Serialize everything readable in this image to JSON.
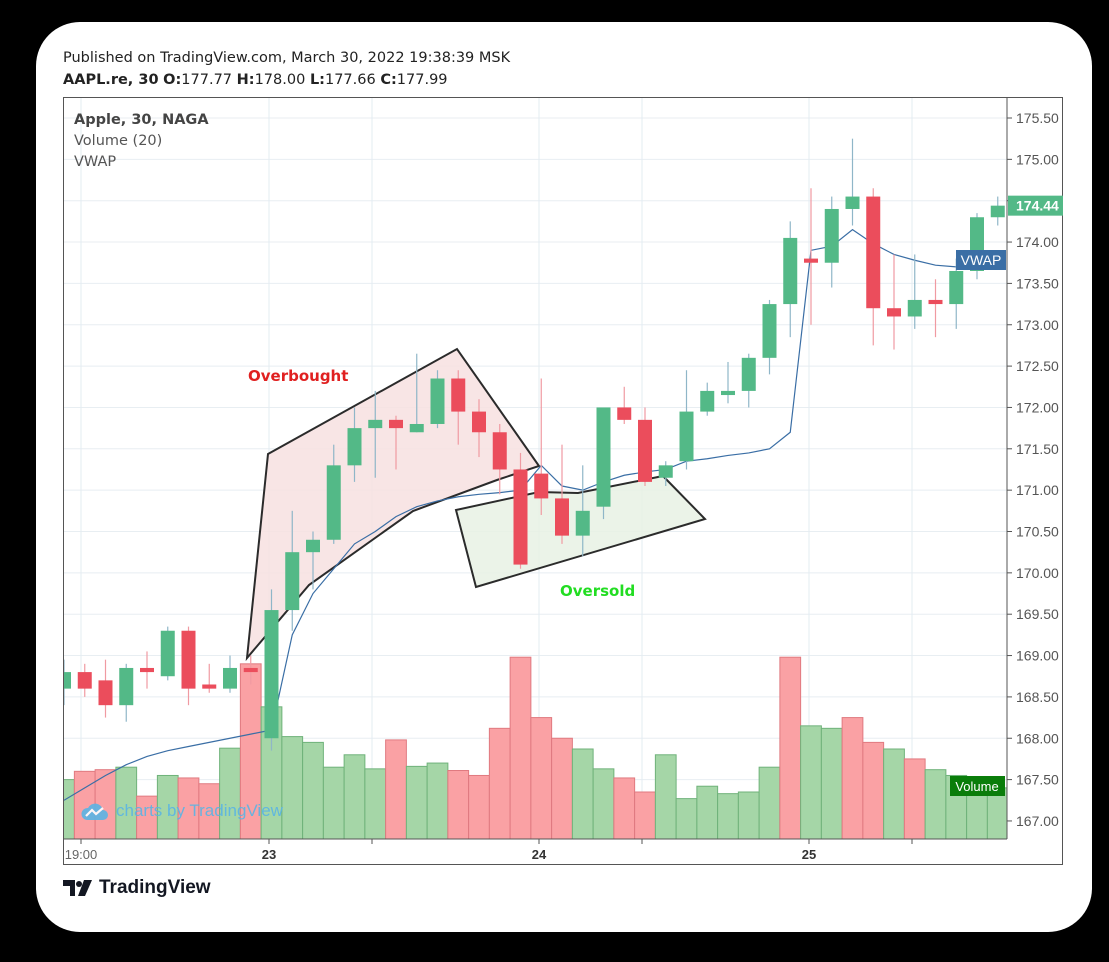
{
  "header": {
    "published": "Published on TradingView.com, March 30, 2022 19:38:39 MSK",
    "symbol_interval": "AAPL.re, 30",
    "o_label": "O:",
    "o_value": "177.77",
    "h_label": "H:",
    "h_value": "178.00",
    "l_label": "L:",
    "l_value": "177.66",
    "c_label": "C:",
    "c_value": "177.99"
  },
  "legend": {
    "main": "Apple, 30, NAGA",
    "volume": "Volume (20)",
    "vwap": "VWAP"
  },
  "watermark": "charts by TradingView",
  "footer_logo": "TradingView",
  "badges": {
    "last_price": "174.44",
    "vwap": "VWAP",
    "volume": "Volume"
  },
  "annotations": {
    "overbought": "Overbought",
    "oversold": "Oversold"
  },
  "colors": {
    "up": "#53b987",
    "down": "#eb4d5c",
    "vol_up": "#a5d6a7",
    "vol_down": "#faa1a4",
    "vwap": "#3a6ea5",
    "overbought_fill": "#f7e1e1",
    "oversold_fill": "#e8f1e4",
    "overbought_text": "#e02020",
    "oversold_text": "#22dd22",
    "last_price_bg": "#53b987",
    "vwap_badge_bg": "#3a6ea5",
    "volume_badge_bg": "#0a7d0a"
  },
  "chart_data": {
    "type": "candlestick",
    "title": "Apple, 30, NAGA",
    "xlabel": "",
    "ylabel": "",
    "ylim": [
      166.75,
      175.75
    ],
    "y_ticks": [
      "175.50",
      "175.00",
      "174.50",
      "174.00",
      "173.50",
      "173.00",
      "172.50",
      "172.00",
      "171.50",
      "171.00",
      "170.50",
      "170.00",
      "169.50",
      "169.00",
      "168.50",
      "168.00",
      "167.50",
      "167.00"
    ],
    "x_ticks": [
      {
        "label": "19:00",
        "index": 0
      },
      {
        "label": "23",
        "index": 10
      },
      {
        "label": "24",
        "index": 23
      },
      {
        "label": "25",
        "index": 36
      }
    ],
    "candles": [
      {
        "o": 168.6,
        "h": 168.95,
        "l": 168.4,
        "c": 168.8
      },
      {
        "o": 168.8,
        "h": 168.9,
        "l": 168.5,
        "c": 168.6
      },
      {
        "o": 168.7,
        "h": 168.95,
        "l": 168.25,
        "c": 168.4
      },
      {
        "o": 168.4,
        "h": 168.9,
        "l": 168.2,
        "c": 168.85
      },
      {
        "o": 168.85,
        "h": 169.05,
        "l": 168.6,
        "c": 168.8
      },
      {
        "o": 168.75,
        "h": 169.35,
        "l": 168.7,
        "c": 169.3
      },
      {
        "o": 169.3,
        "h": 169.35,
        "l": 168.4,
        "c": 168.6
      },
      {
        "o": 168.65,
        "h": 168.9,
        "l": 168.55,
        "c": 168.6
      },
      {
        "o": 168.6,
        "h": 169.0,
        "l": 168.55,
        "c": 168.85
      },
      {
        "o": 168.85,
        "h": 169.0,
        "l": 168.65,
        "c": 168.8
      },
      {
        "o": 168.0,
        "h": 169.8,
        "l": 167.85,
        "c": 169.55
      },
      {
        "o": 169.55,
        "h": 170.75,
        "l": 169.3,
        "c": 170.25
      },
      {
        "o": 170.25,
        "h": 170.5,
        "l": 169.8,
        "c": 170.4
      },
      {
        "o": 170.4,
        "h": 171.55,
        "l": 170.35,
        "c": 171.3
      },
      {
        "o": 171.3,
        "h": 172.0,
        "l": 171.1,
        "c": 171.75
      },
      {
        "o": 171.75,
        "h": 172.2,
        "l": 171.15,
        "c": 171.85
      },
      {
        "o": 171.85,
        "h": 171.9,
        "l": 171.25,
        "c": 171.75
      },
      {
        "o": 171.7,
        "h": 172.65,
        "l": 171.7,
        "c": 171.8
      },
      {
        "o": 171.8,
        "h": 172.45,
        "l": 171.75,
        "c": 172.35
      },
      {
        "o": 172.35,
        "h": 172.45,
        "l": 171.55,
        "c": 171.95
      },
      {
        "o": 171.95,
        "h": 172.1,
        "l": 171.4,
        "c": 171.7
      },
      {
        "o": 171.7,
        "h": 171.8,
        "l": 170.95,
        "c": 171.25
      },
      {
        "o": 171.25,
        "h": 171.45,
        "l": 170.05,
        "c": 170.1
      },
      {
        "o": 171.2,
        "h": 172.35,
        "l": 170.7,
        "c": 170.9
      },
      {
        "o": 170.9,
        "h": 171.55,
        "l": 170.35,
        "c": 170.45
      },
      {
        "o": 170.45,
        "h": 171.3,
        "l": 170.2,
        "c": 170.75
      },
      {
        "o": 170.8,
        "h": 171.55,
        "l": 170.65,
        "c": 172.0
      },
      {
        "o": 172.0,
        "h": 172.25,
        "l": 171.8,
        "c": 171.85
      },
      {
        "o": 171.85,
        "h": 172.0,
        "l": 171.05,
        "c": 171.1
      },
      {
        "o": 171.15,
        "h": 171.35,
        "l": 171.05,
        "c": 171.3
      },
      {
        "o": 171.35,
        "h": 172.45,
        "l": 171.25,
        "c": 171.95
      },
      {
        "o": 171.95,
        "h": 172.3,
        "l": 171.9,
        "c": 172.2
      },
      {
        "o": 172.15,
        "h": 172.55,
        "l": 172.05,
        "c": 172.2
      },
      {
        "o": 172.2,
        "h": 172.65,
        "l": 172.0,
        "c": 172.6
      },
      {
        "o": 172.6,
        "h": 173.3,
        "l": 172.4,
        "c": 173.25
      },
      {
        "o": 173.25,
        "h": 174.25,
        "l": 172.85,
        "c": 174.05
      },
      {
        "o": 173.8,
        "h": 174.65,
        "l": 173.0,
        "c": 173.75
      },
      {
        "o": 173.75,
        "h": 174.55,
        "l": 173.45,
        "c": 174.4
      },
      {
        "o": 174.4,
        "h": 175.25,
        "l": 174.2,
        "c": 174.55
      },
      {
        "o": 174.55,
        "h": 174.65,
        "l": 172.75,
        "c": 173.2
      },
      {
        "o": 173.2,
        "h": 173.85,
        "l": 172.7,
        "c": 173.1
      },
      {
        "o": 173.1,
        "h": 173.85,
        "l": 172.95,
        "c": 173.3
      },
      {
        "o": 173.3,
        "h": 173.55,
        "l": 172.85,
        "c": 173.25
      },
      {
        "o": 173.25,
        "h": 173.8,
        "l": 172.95,
        "c": 173.65
      },
      {
        "o": 173.65,
        "h": 174.35,
        "l": 173.55,
        "c": 174.3
      },
      {
        "o": 174.3,
        "h": 174.55,
        "l": 174.2,
        "c": 174.44
      }
    ],
    "volume_series": {
      "name": "Volume (20)",
      "bar_tops_price_scale": [
        167.5,
        167.6,
        167.62,
        167.65,
        167.3,
        167.55,
        167.52,
        167.45,
        167.88,
        168.9,
        168.38,
        168.02,
        167.95,
        167.65,
        167.8,
        167.63,
        167.98,
        167.66,
        167.7,
        167.61,
        167.55,
        168.12,
        168.98,
        168.25,
        168.0,
        167.87,
        167.63,
        167.52,
        167.35,
        167.8,
        167.27,
        167.42,
        167.33,
        167.35,
        167.65,
        168.98,
        168.15,
        168.12,
        168.25,
        167.95,
        167.87,
        167.75,
        167.62,
        167.55,
        167.4,
        167.4
      ],
      "up_flags": [
        true,
        false,
        false,
        true,
        false,
        true,
        false,
        false,
        true,
        false,
        true,
        true,
        true,
        true,
        true,
        true,
        false,
        true,
        true,
        false,
        false,
        false,
        false,
        false,
        false,
        true,
        true,
        false,
        false,
        true,
        true,
        true,
        true,
        true,
        true,
        false,
        true,
        true,
        false,
        false,
        true,
        false,
        true,
        true,
        true,
        true
      ]
    },
    "vwap_series": {
      "name": "VWAP",
      "values": [
        167.25,
        167.4,
        167.55,
        167.68,
        167.78,
        167.85,
        167.9,
        167.95,
        168.0,
        168.05,
        168.1,
        169.25,
        169.75,
        170.05,
        170.35,
        170.5,
        170.68,
        170.8,
        170.87,
        170.92,
        170.95,
        170.97,
        171.0,
        171.3,
        171.05,
        171.0,
        171.1,
        171.18,
        171.22,
        171.25,
        171.35,
        171.38,
        171.42,
        171.45,
        171.5,
        171.7,
        173.9,
        173.95,
        174.15,
        173.98,
        173.85,
        173.78,
        173.72,
        173.7,
        173.7,
        173.7
      ]
    },
    "annotations": [
      {
        "type": "polygon",
        "label": "Overbought",
        "points_xy": [
          [
            247,
            658
          ],
          [
            268,
            454
          ],
          [
            457,
            349
          ],
          [
            539,
            466
          ],
          [
            497,
            480
          ],
          [
            413,
            511
          ],
          [
            309,
            585
          ],
          [
            247,
            658
          ]
        ]
      },
      {
        "type": "polygon",
        "label": "Oversold",
        "points_xy": [
          [
            456,
            510
          ],
          [
            539,
            492
          ],
          [
            578,
            493
          ],
          [
            663,
            476
          ],
          [
            705,
            519
          ],
          [
            476,
            587
          ]
        ]
      }
    ],
    "last_price": 174.44,
    "legend_position": "top-left"
  }
}
